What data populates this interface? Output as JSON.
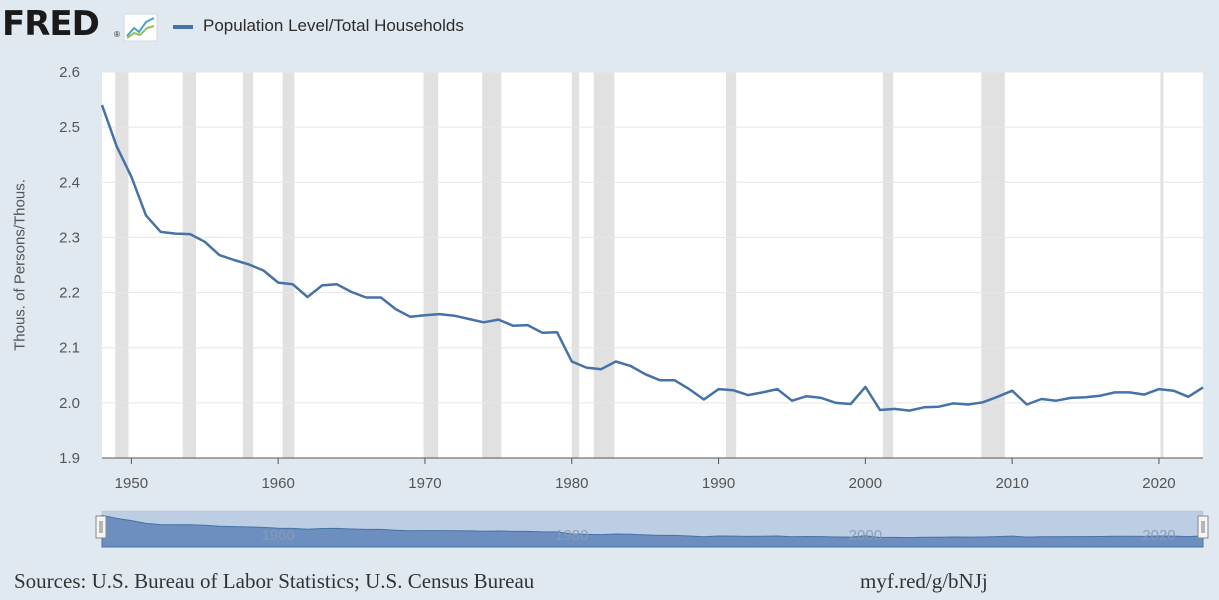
{
  "logo": {
    "text": "FRED",
    "reg": "®",
    "icon": "fred-chart-icon"
  },
  "chart_data": {
    "type": "line",
    "title": "",
    "ylabel": "Thous. of Persons/Thous.",
    "xlabel": "",
    "ylim": [
      1.9,
      2.6
    ],
    "xlim": [
      1948,
      2023
    ],
    "yticks": [
      "1.9",
      "2.0",
      "2.1",
      "2.2",
      "2.3",
      "2.4",
      "2.5",
      "2.6"
    ],
    "xticks": [
      "1950",
      "1960",
      "1970",
      "1980",
      "1990",
      "2000",
      "2010",
      "2020"
    ],
    "navigator_labels": [
      "1960",
      "1980",
      "2000",
      "2020"
    ],
    "grid": true,
    "legend": "top-left",
    "series": [
      {
        "name": "Population Level/Total Households",
        "color": "#4572a7",
        "x": [
          1948,
          1949,
          1950,
          1951,
          1952,
          1953,
          1954,
          1955,
          1956,
          1957,
          1958,
          1959,
          1960,
          1961,
          1962,
          1963,
          1964,
          1965,
          1966,
          1967,
          1968,
          1969,
          1970,
          1971,
          1972,
          1973,
          1974,
          1975,
          1976,
          1977,
          1978,
          1979,
          1980,
          1981,
          1982,
          1983,
          1984,
          1985,
          1986,
          1987,
          1988,
          1989,
          1990,
          1991,
          1992,
          1993,
          1994,
          1995,
          1996,
          1997,
          1998,
          1999,
          2000,
          2001,
          2002,
          2003,
          2004,
          2005,
          2006,
          2007,
          2008,
          2009,
          2010,
          2011,
          2012,
          2013,
          2014,
          2015,
          2016,
          2017,
          2018,
          2019,
          2020,
          2021,
          2022,
          2023
        ],
        "values": [
          2.54,
          2.465,
          2.41,
          2.34,
          2.31,
          2.307,
          2.306,
          2.292,
          2.268,
          2.259,
          2.251,
          2.24,
          2.218,
          2.215,
          2.192,
          2.213,
          2.215,
          2.201,
          2.191,
          2.191,
          2.17,
          2.156,
          2.159,
          2.161,
          2.158,
          2.152,
          2.146,
          2.151,
          2.14,
          2.141,
          2.127,
          2.128,
          2.075,
          2.064,
          2.061,
          2.075,
          2.067,
          2.052,
          2.041,
          2.041,
          2.025,
          2.006,
          2.025,
          2.023,
          2.014,
          2.019,
          2.025,
          2.004,
          2.012,
          2.009,
          2.0,
          1.998,
          2.029,
          1.987,
          1.989,
          1.986,
          1.992,
          1.993,
          1.999,
          1.997,
          2.001,
          2.011,
          2.022,
          1.997,
          2.007,
          2.004,
          2.009,
          2.01,
          2.013,
          2.019,
          2.019,
          2.015,
          2.025,
          2.022,
          2.011,
          2.028
        ]
      }
    ],
    "recessions": [
      [
        1948.9,
        1949.8
      ],
      [
        1953.5,
        1954.4
      ],
      [
        1957.6,
        1958.3
      ],
      [
        1960.3,
        1961.1
      ],
      [
        1969.9,
        1970.9
      ],
      [
        1973.9,
        1975.2
      ],
      [
        1980.0,
        1980.5
      ],
      [
        1981.5,
        1982.9
      ],
      [
        1990.5,
        1991.2
      ],
      [
        2001.2,
        2001.9
      ],
      [
        2007.9,
        2009.5
      ],
      [
        2020.1,
        2020.3
      ]
    ]
  },
  "sources": "Sources: U.S. Bureau of Labor Statistics; U.S. Census Bureau",
  "short_link": "myf.red/g/bNJj"
}
